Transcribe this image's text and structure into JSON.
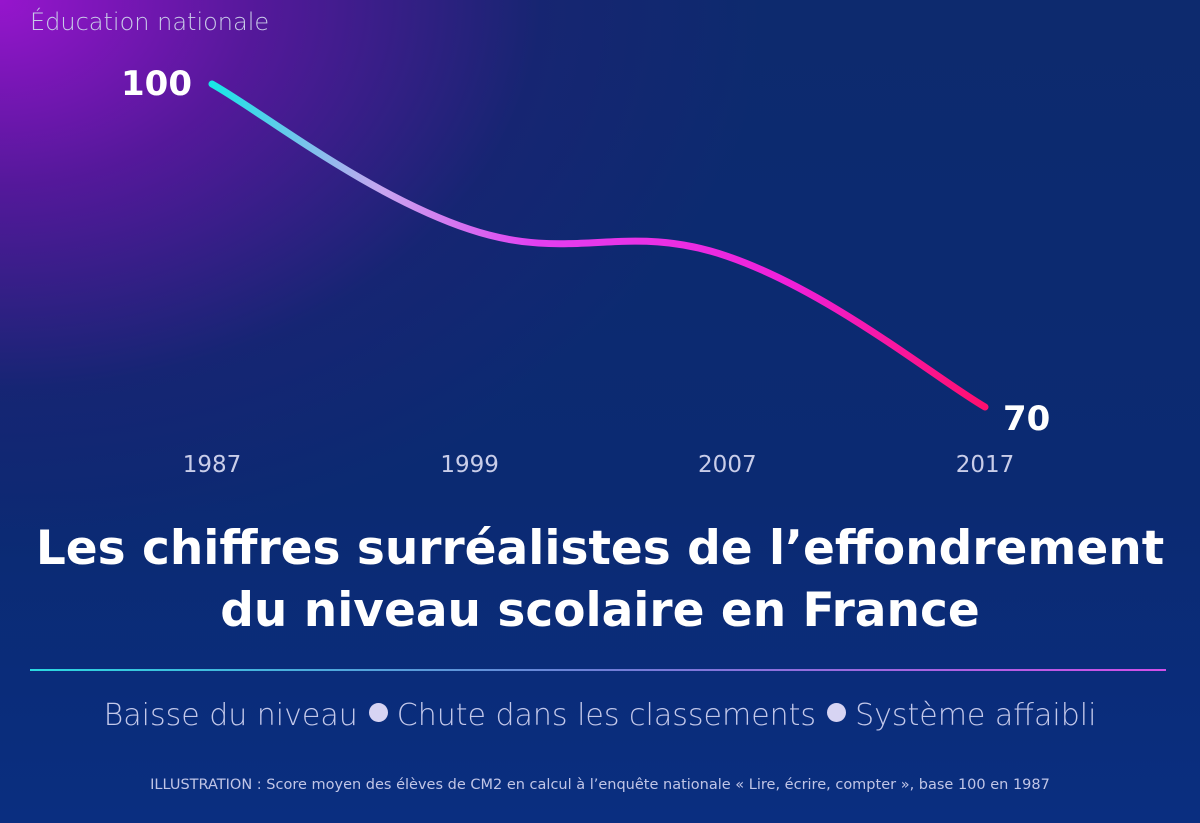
{
  "header": {
    "source_label": "Éducation nationale"
  },
  "chart_data": {
    "type": "line",
    "x": [
      "1987",
      "1999",
      "2007",
      "2017"
    ],
    "series": [
      {
        "values": [
          100,
          86.5,
          84,
          70
        ]
      }
    ],
    "data_labels": [
      "100",
      "",
      "",
      "70"
    ],
    "ylim": [
      70,
      100
    ],
    "grid": false,
    "colors": {
      "start": "#18e6e6",
      "middle": "#e23ff0",
      "end": "#ff0f6e"
    }
  },
  "title": {
    "line1": "Les chiffres surréalistes de l’effondrement",
    "line2": "du niveau scolaire en France"
  },
  "legend": {
    "items": [
      "Baisse du niveau",
      "Chute dans les classements",
      "Système affaibli"
    ]
  },
  "caption": "ILLUSTRATION : Score moyen des élèves de CM2 en calcul à l’enquête nationale « Lire, écrire, compter », base 100 en 1987"
}
